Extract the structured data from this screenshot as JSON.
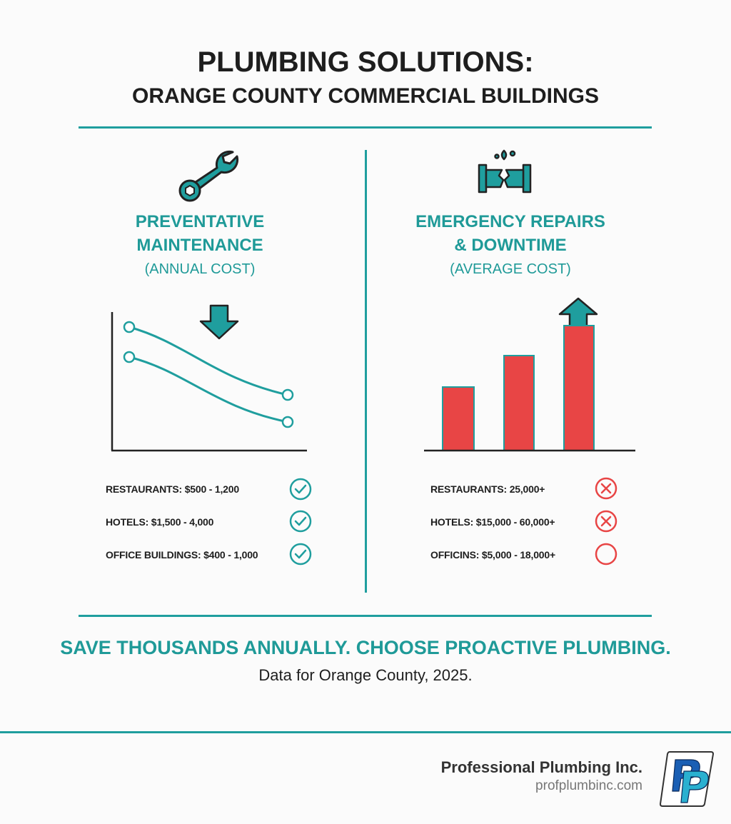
{
  "title": {
    "line1": "PLUMBING SOLUTIONS:",
    "line2": "ORANGE COUNTY COMMERCIAL BUILDINGS"
  },
  "colors": {
    "accent": "#1f9e9e",
    "danger": "#e84545",
    "text": "#1e1e1e"
  },
  "left": {
    "icon": "wrench-icon",
    "heading1": "PREVENTATIVE",
    "heading2": "MAINTENANCE",
    "subheading": "(ANNUAL COST)",
    "trend": "down",
    "items": [
      {
        "label": "RESTAURANTS: $500 - 1,200",
        "status": "check"
      },
      {
        "label": "HOTELS: $1,500 - 4,000",
        "status": "check"
      },
      {
        "label": "OFFICE BUILDINGS: $400 - 1,000",
        "status": "check"
      }
    ]
  },
  "right": {
    "icon": "burst-pipe-icon",
    "heading1": "EMERGENCY REPAIRS",
    "heading2": "& DOWNTIME",
    "subheading": "(AVERAGE COST)",
    "trend": "up",
    "items": [
      {
        "label": "RESTAURANTS: 25,000+",
        "status": "x"
      },
      {
        "label": "HOTELS: $15,000 - 60,000+",
        "status": "x"
      },
      {
        "label": "OFFICINS: $5,000 - 18,000+",
        "status": "empty"
      }
    ]
  },
  "tagline": "SAVE THOUSANDS ANNUALLY. CHOOSE PROACTIVE PLUMBING.",
  "note": "Data for Orange County, 2025.",
  "footer": {
    "company": "Professional Plumbing Inc.",
    "url": "profplumbinc.com",
    "logo_text": "PP"
  }
}
